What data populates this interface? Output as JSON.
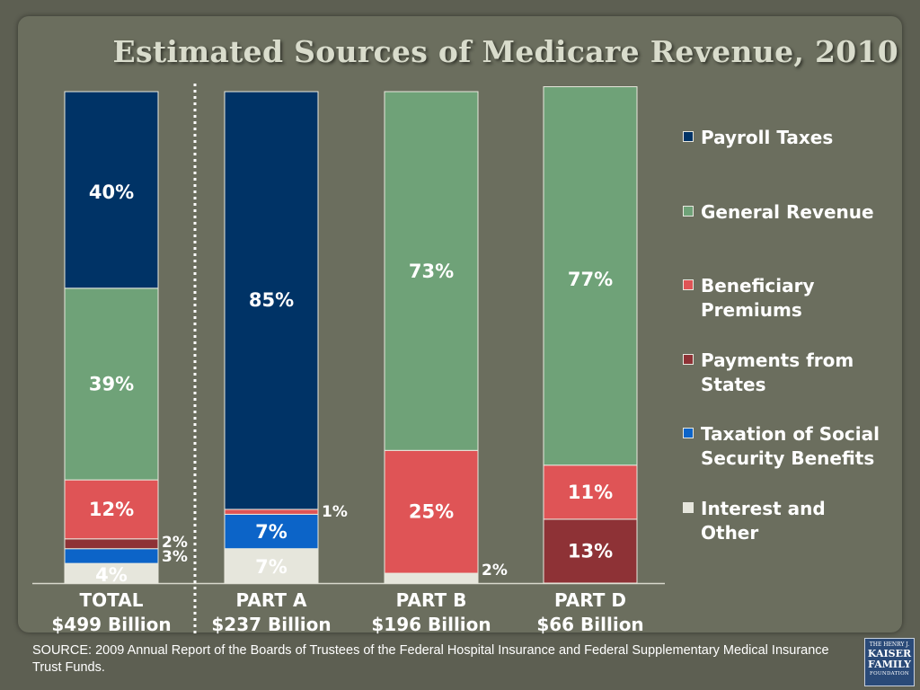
{
  "title": "Estimated Sources of Medicare Revenue, 2010",
  "chart_data": {
    "type": "bar",
    "stacked": true,
    "normalized": true,
    "categories": [
      "TOTAL\n$499 Billion",
      "PART A\n$237 Billion",
      "PART B\n$196 Billion",
      "PART D\n$66 Billion"
    ],
    "category_lines": [
      [
        "TOTAL",
        "$499 Billion"
      ],
      [
        "PART A",
        "$237 Billion"
      ],
      [
        "PART B",
        "$196 Billion"
      ],
      [
        "PART D",
        "$66 Billion"
      ]
    ],
    "series": [
      {
        "name": "Payroll Taxes",
        "color": "#003366",
        "values": [
          40,
          85,
          0,
          0
        ],
        "labels": [
          "40%",
          "85%",
          "",
          ""
        ]
      },
      {
        "name": "General Revenue",
        "color": "#6fa278",
        "values": [
          39,
          0,
          73,
          77
        ],
        "labels": [
          "39%",
          "",
          "73%",
          "77%"
        ]
      },
      {
        "name": "Beneficiary Premiums",
        "color": "#df5456",
        "values": [
          12,
          1,
          25,
          11
        ],
        "labels": [
          "12%",
          "1%",
          "25%",
          "11%"
        ]
      },
      {
        "name": "Payments from States",
        "color": "#8e3236",
        "values": [
          2,
          0,
          0,
          13
        ],
        "labels": [
          "2%",
          "",
          "",
          "13%"
        ]
      },
      {
        "name": "Taxation of Social Security Benefits",
        "color": "#0c64c8",
        "values": [
          3,
          7,
          0,
          0
        ],
        "labels": [
          "3%",
          "7%",
          "",
          ""
        ]
      },
      {
        "name": "Interest and Other",
        "color": "#e6e6dc",
        "values": [
          4,
          7,
          2,
          0
        ],
        "labels": [
          "4%",
          "7%",
          "2%",
          ""
        ]
      }
    ],
    "legend": {
      "position": "right"
    },
    "separator": "dotted line between TOTAL and PART A"
  },
  "legend_items": [
    {
      "label": "Payroll Taxes",
      "color": "#003366"
    },
    {
      "label": "General Revenue",
      "color": "#6fa278"
    },
    {
      "label": "Beneficiary Premiums",
      "color": "#df5456"
    },
    {
      "label": "Payments from States",
      "color": "#8e3236"
    },
    {
      "label": "Taxation of Social Security Benefits",
      "color": "#0c64c8"
    },
    {
      "label": "Interest and Other",
      "color": "#e6e6dc"
    }
  ],
  "source": "SOURCE: 2009 Annual Report of the Boards of Trustees of the Federal Hospital Insurance and Federal Supplementary Medical Insurance Trust Funds.",
  "logo": {
    "line1": "THE HENRY J.",
    "line2": "KAISER",
    "line3": "FAMILY",
    "line4": "FOUNDATION"
  }
}
